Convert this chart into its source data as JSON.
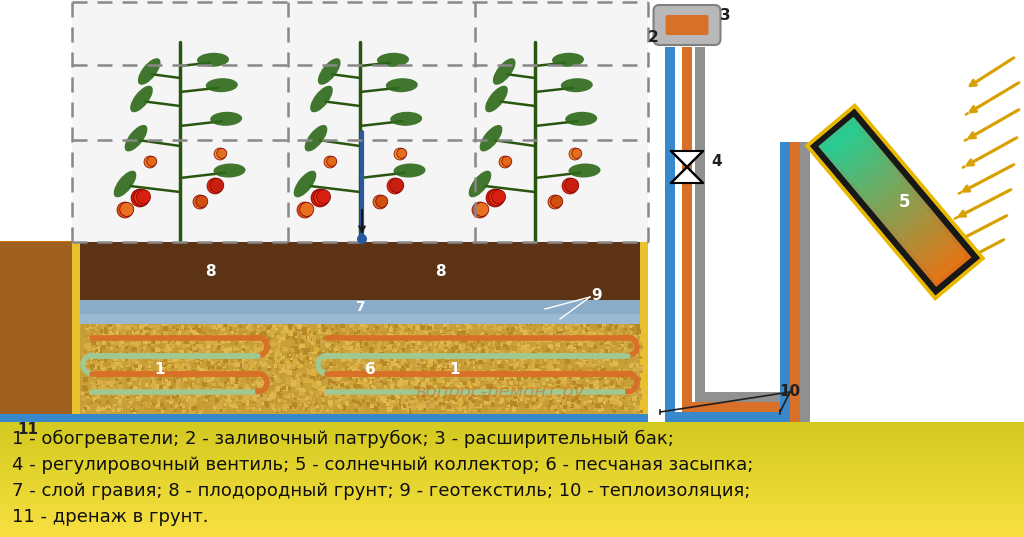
{
  "bg_color": "#ffffff",
  "caption_lines": [
    "1 - обогреватели; 2 - заливочный патрубок; 3 - расширительный бак;",
    "4 - регулировочный вентиль; 5 - солнечный коллектор; 6 - песчаная засыпка;",
    "7 - слой гравия; 8 - плодородный грунт; 9 - геотекстиль; 10 - теплоизоляция;",
    "11 - дренаж в грунт."
  ],
  "caption_fontsize": 13.0,
  "watermark": "вопрос-ремонт.ру",
  "watermark_color": "#d06818",
  "colors": {
    "white": "#ffffff",
    "greenhouse_border": "#888888",
    "soil_dark": "#5c3315",
    "soil_topsoil": "#6b3e18",
    "sand_yellow": "#c8a040",
    "sand_pixel1": "#d4aa48",
    "sand_pixel2": "#b89030",
    "gravel_blue": "#8aaccc",
    "gravel_gray": "#9090a0",
    "insulation_yellow": "#e8c030",
    "insulation_gray": "#c8c8b8",
    "pipe_orange": "#d87028",
    "pipe_blue": "#3888cc",
    "pipe_gray": "#909090",
    "collector_border": "#e8b800",
    "collector_black": "#181818",
    "tank_gray": "#b8b8b8",
    "tank_orange": "#d87028",
    "arrow_yellow": "#d8a000",
    "outside_soil_top": "#b06820",
    "outside_soil_bot": "#e89840",
    "caption_bg": "#f8e050",
    "drain_blue": "#3888cc",
    "geotextile": "#8aacc8"
  }
}
